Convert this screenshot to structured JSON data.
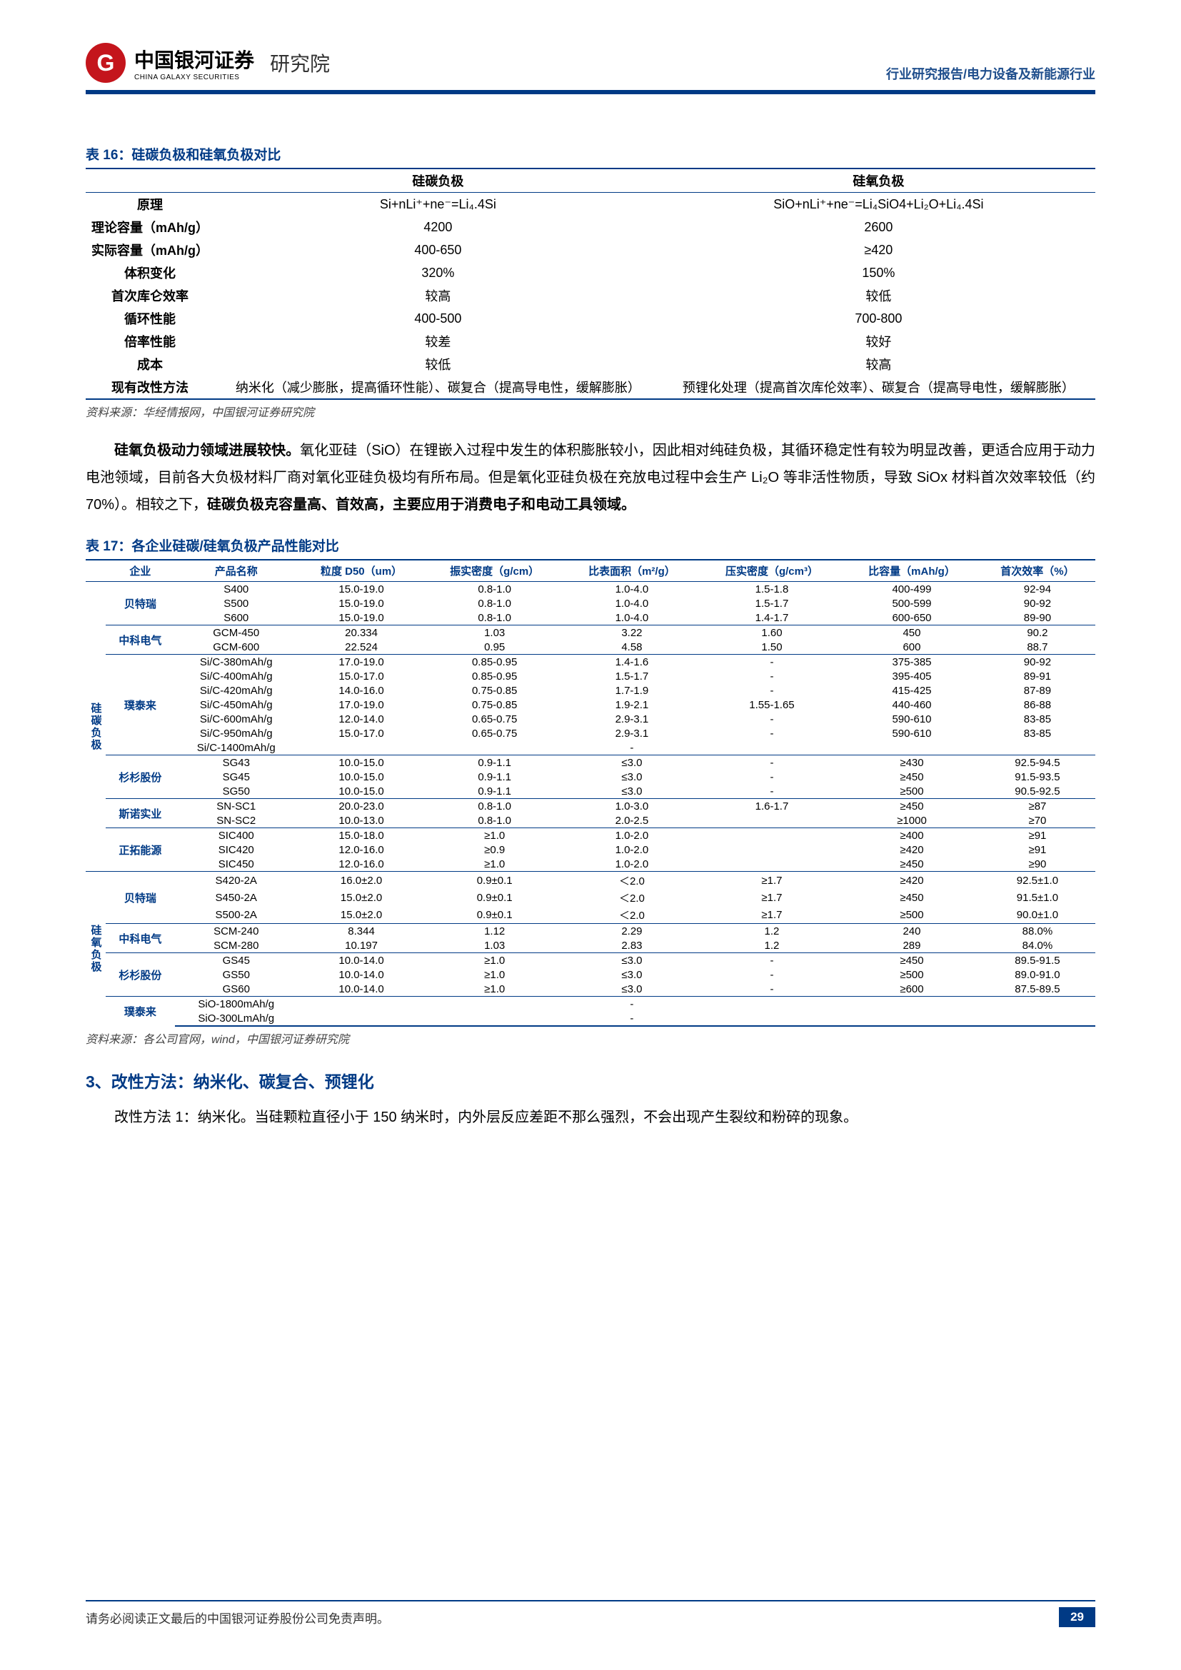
{
  "header": {
    "logo_glyph": "G",
    "company_cn": "中国银河证券",
    "company_en": "CHINA GALAXY SECURITIES",
    "institute": "研究院",
    "right": "行业研究报告/电力设备及新能源行业"
  },
  "colors": {
    "brand_red": "#c4151c",
    "brand_blue": "#003a85",
    "text": "#000000",
    "background": "#ffffff"
  },
  "table16": {
    "title": "表 16：硅碳负极和硅氧负极对比",
    "header_blank": "",
    "col1": "硅碳负极",
    "col2": "硅氧负极",
    "rows": [
      {
        "k": "原理",
        "a": "Si+nLi⁺+ne⁻=Li₄.4Si",
        "b": "SiO+nLi⁺+ne⁻=Li₄SiO4+Li₂O+Li₄.4Si"
      },
      {
        "k": "理论容量（mAh/g）",
        "a": "4200",
        "b": "2600"
      },
      {
        "k": "实际容量（mAh/g）",
        "a": "400-650",
        "b": "≥420"
      },
      {
        "k": "体积变化",
        "a": "320%",
        "b": "150%"
      },
      {
        "k": "首次库仑效率",
        "a": "较高",
        "b": "较低"
      },
      {
        "k": "循环性能",
        "a": "400-500",
        "b": "700-800"
      },
      {
        "k": "倍率性能",
        "a": "较差",
        "b": "较好"
      },
      {
        "k": "成本",
        "a": "较低",
        "b": "较高"
      },
      {
        "k": "现有改性方法",
        "a": "纳米化（减少膨胀，提高循环性能）、碳复合（提高导电性，缓解膨胀）",
        "b": "预锂化处理（提高首次库伦效率）、碳复合（提高导电性，缓解膨胀）"
      }
    ],
    "source": "资料来源：华经情报网，中国银河证券研究院"
  },
  "para1": {
    "lead_b": "硅氧负极动力领域进展较快。",
    "body": "氧化亚硅（SiO）在锂嵌入过程中发生的体积膨胀较小，因此相对纯硅负极，其循环稳定性有较为明显改善，更适合应用于动力电池领域，目前各大负极材料厂商对氧化亚硅负极均有所布局。但是氧化亚硅负极在充放电过程中会生产 Li₂O 等非活性物质，导致 SiOx 材料首次效率较低（约 70%）。相较之下，",
    "tail_b": "硅碳负极克容量高、首效高，主要应用于消费电子和电动工具领域。"
  },
  "table17": {
    "title": "表 17：各企业硅碳/硅氧负极产品性能对比",
    "columns": [
      "企业",
      "产品名称",
      "粒度 D50（um）",
      "振实密度（g/cm）",
      "比表面积（m²/g）",
      "压实密度（g/cm³）",
      "比容量（mAh/g）",
      "首次效率（%）"
    ],
    "cat1": "硅碳负极",
    "cat2": "硅氧负极",
    "source": "资料来源：各公司官网，wind，中国银河证券研究院",
    "group_sic": [
      {
        "co": "贝特瑞",
        "rows": [
          [
            "S400",
            "15.0-19.0",
            "0.8-1.0",
            "1.0-4.0",
            "1.5-1.8",
            "400-499",
            "92-94"
          ],
          [
            "S500",
            "15.0-19.0",
            "0.8-1.0",
            "1.0-4.0",
            "1.5-1.7",
            "500-599",
            "90-92"
          ],
          [
            "S600",
            "15.0-19.0",
            "0.8-1.0",
            "1.0-4.0",
            "1.4-1.7",
            "600-650",
            "89-90"
          ]
        ]
      },
      {
        "co": "中科电气",
        "rows": [
          [
            "GCM-450",
            "20.334",
            "1.03",
            "3.22",
            "1.60",
            "450",
            "90.2"
          ],
          [
            "GCM-600",
            "22.524",
            "0.95",
            "4.58",
            "1.50",
            "600",
            "88.7"
          ]
        ]
      },
      {
        "co": "璞泰来",
        "rows": [
          [
            "Si/C-380mAh/g",
            "17.0-19.0",
            "0.85-0.95",
            "1.4-1.6",
            "-",
            "375-385",
            "90-92"
          ],
          [
            "Si/C-400mAh/g",
            "15.0-17.0",
            "0.85-0.95",
            "1.5-1.7",
            "-",
            "395-405",
            "89-91"
          ],
          [
            "Si/C-420mAh/g",
            "14.0-16.0",
            "0.75-0.85",
            "1.7-1.9",
            "-",
            "415-425",
            "87-89"
          ],
          [
            "Si/C-450mAh/g",
            "17.0-19.0",
            "0.75-0.85",
            "1.9-2.1",
            "1.55-1.65",
            "440-460",
            "86-88"
          ],
          [
            "Si/C-600mAh/g",
            "12.0-14.0",
            "0.65-0.75",
            "2.9-3.1",
            "-",
            "590-610",
            "83-85"
          ],
          [
            "Si/C-950mAh/g",
            "15.0-17.0",
            "0.65-0.75",
            "2.9-3.1",
            "-",
            "590-610",
            "83-85"
          ],
          [
            "Si/C-1400mAh/g",
            "",
            "",
            "-",
            "",
            "",
            ""
          ]
        ]
      },
      {
        "co": "杉杉股份",
        "rows": [
          [
            "SG43",
            "10.0-15.0",
            "0.9-1.1",
            "≤3.0",
            "-",
            "≥430",
            "92.5-94.5"
          ],
          [
            "SG45",
            "10.0-15.0",
            "0.9-1.1",
            "≤3.0",
            "-",
            "≥450",
            "91.5-93.5"
          ],
          [
            "SG50",
            "10.0-15.0",
            "0.9-1.1",
            "≤3.0",
            "-",
            "≥500",
            "90.5-92.5"
          ]
        ]
      },
      {
        "co": "斯诺实业",
        "rows": [
          [
            "SN-SC1",
            "20.0-23.0",
            "0.8-1.0",
            "1.0-3.0",
            "1.6-1.7",
            "≥450",
            "≥87"
          ],
          [
            "SN-SC2",
            "10.0-13.0",
            "0.8-1.0",
            "2.0-2.5",
            "",
            "≥1000",
            "≥70"
          ]
        ]
      },
      {
        "co": "正拓能源",
        "rows": [
          [
            "SIC400",
            "15.0-18.0",
            "≥1.0",
            "1.0-2.0",
            "",
            "≥400",
            "≥91"
          ],
          [
            "SIC420",
            "12.0-16.0",
            "≥0.9",
            "1.0-2.0",
            "",
            "≥420",
            "≥91"
          ],
          [
            "SIC450",
            "12.0-16.0",
            "≥1.0",
            "1.0-2.0",
            "",
            "≥450",
            "≥90"
          ]
        ]
      }
    ],
    "group_sio": [
      {
        "co": "贝特瑞",
        "rows": [
          [
            "S420-2A",
            "16.0±2.0",
            "0.9±0.1",
            "＜2.0",
            "≥1.7",
            "≥420",
            "92.5±1.0"
          ],
          [
            "S450-2A",
            "15.0±2.0",
            "0.9±0.1",
            "＜2.0",
            "≥1.7",
            "≥450",
            "91.5±1.0"
          ],
          [
            "S500-2A",
            "15.0±2.0",
            "0.9±0.1",
            "＜2.0",
            "≥1.7",
            "≥500",
            "90.0±1.0"
          ]
        ]
      },
      {
        "co": "中科电气",
        "rows": [
          [
            "SCM-240",
            "8.344",
            "1.12",
            "2.29",
            "1.2",
            "240",
            "88.0%"
          ],
          [
            "SCM-280",
            "10.197",
            "1.03",
            "2.83",
            "1.2",
            "289",
            "84.0%"
          ]
        ]
      },
      {
        "co": "杉杉股份",
        "rows": [
          [
            "GS45",
            "10.0-14.0",
            "≥1.0",
            "≤3.0",
            "-",
            "≥450",
            "89.5-91.5"
          ],
          [
            "GS50",
            "10.0-14.0",
            "≥1.0",
            "≤3.0",
            "-",
            "≥500",
            "89.0-91.0"
          ],
          [
            "GS60",
            "10.0-14.0",
            "≥1.0",
            "≤3.0",
            "-",
            "≥600",
            "87.5-89.5"
          ]
        ]
      },
      {
        "co": "璞泰来",
        "rows": [
          [
            "SiO-1800mAh/g",
            "",
            "",
            "-",
            "",
            "",
            ""
          ],
          [
            "SiO-300LmAh/g",
            "",
            "",
            "-",
            "",
            "",
            ""
          ]
        ]
      }
    ]
  },
  "h3": "3、改性方法：纳米化、碳复合、预锂化",
  "para2": {
    "b": "改性方法 1：纳米化。",
    "t": "当硅颗粒直径小于 150 纳米时，内外层反应差距不那么强烈，不会出现产生裂纹和粉碎的现象。"
  },
  "footer": {
    "text": "请务必阅读正文最后的中国银河证券股份公司免责声明。",
    "page": "29"
  }
}
